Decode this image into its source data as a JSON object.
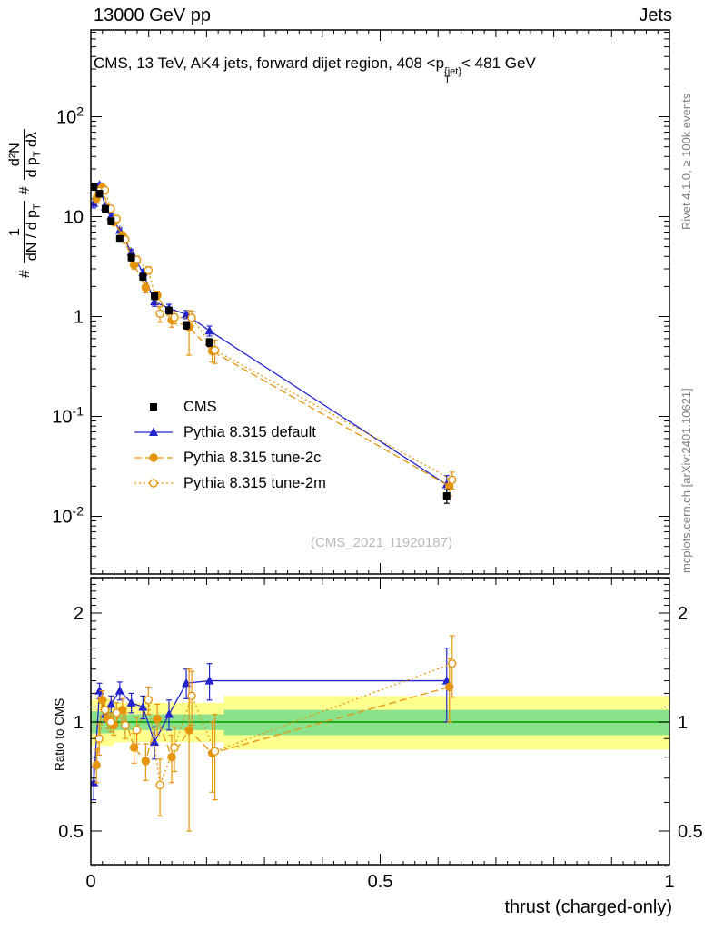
{
  "header": {
    "left": "13000 GeV pp",
    "right": "Jets"
  },
  "title": {
    "a": "CMS, 13 TeV, AK4 jets, forward dijet region, 408 <p",
    "sup": "{jet}",
    "sub": "T",
    "b": "< 481 GeV"
  },
  "watermark": "(CMS_2021_I1920187)",
  "side_notes": {
    "top": "Rivet 4.1.0, ≥ 100k events",
    "bottom": "mcplots.cern.ch [arXiv:2401.10621]"
  },
  "ylabel_parts": {
    "hash1": "#",
    "frac1_num": "1",
    "frac1_den_a": "dN / d p",
    "frac1_den_sub": "T",
    "hash2": "#",
    "frac2_num": "d²N",
    "frac2_den_a": "d p",
    "frac2_den_sub": "T",
    "frac2_den_b": " dλ"
  },
  "chart_data": {
    "type": "line",
    "xlabel": "thrust (charged-only)",
    "xlim": [
      0,
      1
    ],
    "xticks": [
      {
        "v": 0,
        "label": "0"
      },
      {
        "v": 0.5,
        "label": "0.5"
      },
      {
        "v": 1,
        "label": "1"
      }
    ],
    "bin_centers": [
      0.005,
      0.015,
      0.025,
      0.035,
      0.05,
      0.07,
      0.09,
      0.11,
      0.135,
      0.165,
      0.205,
      0.615
    ],
    "main_panel": {
      "ylog": true,
      "ylim": [
        0.0028,
        710
      ],
      "yticks": [
        {
          "v": 100,
          "base": "10",
          "exp": "2"
        },
        {
          "v": 10,
          "base": "10",
          "exp": ""
        },
        {
          "v": 1,
          "base": "1",
          "exp": ""
        },
        {
          "v": 0.1,
          "base": "10",
          "exp": "-1"
        },
        {
          "v": 0.01,
          "base": "10",
          "exp": "-2"
        }
      ],
      "cms": {
        "label": "CMS",
        "color": "#000000",
        "marker": "square",
        "y": [
          20,
          17,
          12,
          9,
          6.0,
          3.9,
          2.5,
          1.6,
          1.15,
          0.82,
          0.55,
          0.016
        ],
        "yerr": [
          1.6,
          1.3,
          0.9,
          0.7,
          0.45,
          0.3,
          0.19,
          0.12,
          0.09,
          0.07,
          0.05,
          0.0025
        ]
      },
      "series": [
        {
          "label": "Pythia 8.315 default",
          "color": "#2424cc",
          "line": "solid",
          "marker": "triangle",
          "open": false,
          "y": [
            13.6,
            20.7,
            12.6,
            10.1,
            7.3,
            4.4,
            2.75,
            1.41,
            1.21,
            1.05,
            0.72,
            0.0208
          ],
          "ratio": [
            0.68,
            1.22,
            1.05,
            1.12,
            1.22,
            1.13,
            1.1,
            0.88,
            1.05,
            1.28,
            1.3,
            1.3
          ],
          "ratio_err": [
            0.07,
            0.06,
            0.05,
            0.06,
            0.07,
            0.07,
            0.08,
            0.09,
            0.1,
            0.12,
            0.15,
            0.3
          ]
        },
        {
          "label": "Pythia 8.315 tune-2c",
          "color": "#e6940a",
          "line": "dashed",
          "marker": "circle",
          "open": false,
          "y": [
            15.2,
            19.6,
            12.2,
            8.8,
            6.5,
            3.3,
            1.95,
            1.63,
            0.92,
            0.78,
            0.45,
            0.02
          ],
          "ratio": [
            0.76,
            1.15,
            1.02,
            0.98,
            1.08,
            0.85,
            0.78,
            1.02,
            0.8,
            0.95,
            0.82,
            1.25
          ],
          "ratio_err": [
            0.08,
            0.07,
            0.06,
            0.06,
            0.08,
            0.08,
            0.09,
            0.1,
            0.12,
            0.45,
            0.18,
            0.25
          ]
        },
        {
          "label": "Pythia 8.315 tune-2m",
          "color": "#e6940a",
          "line": "dotted",
          "marker": "circle",
          "open": true,
          "y": [
            18.0,
            18.4,
            12.0,
            9.5,
            5.9,
            3.7,
            2.9,
            1.07,
            0.98,
            0.97,
            0.46,
            0.0232
          ],
          "ratio": [
            0.9,
            1.08,
            1.0,
            1.06,
            0.98,
            0.95,
            1.15,
            0.67,
            0.85,
            1.18,
            0.83,
            1.45
          ],
          "ratio_err": [
            0.09,
            0.07,
            0.06,
            0.07,
            0.08,
            0.08,
            0.1,
            0.12,
            0.12,
            0.2,
            0.22,
            0.28
          ]
        }
      ]
    },
    "ratio_panel": {
      "ylabel": "Ratio to CMS",
      "ylog": true,
      "ylim": [
        0.4,
        2.5
      ],
      "yticks": [
        {
          "v": 2,
          "label": "2"
        },
        {
          "v": 1,
          "label": "1"
        },
        {
          "v": 0.5,
          "label": "0.5"
        }
      ],
      "ref_value": 1,
      "ref_color": "#009900",
      "band_yellow_color": "#ffff8e",
      "band_green_color": "#8be28b",
      "band_segments": [
        {
          "x0": 0,
          "x1": 0.04,
          "yellow_lo": 0.86,
          "yellow_hi": 1.16,
          "green_lo": 0.93,
          "green_hi": 1.07
        },
        {
          "x0": 0.04,
          "x1": 0.23,
          "yellow_lo": 0.88,
          "yellow_hi": 1.13,
          "green_lo": 0.95,
          "green_hi": 1.05
        },
        {
          "x0": 0.23,
          "x1": 1.0,
          "yellow_lo": 0.84,
          "yellow_hi": 1.18,
          "green_lo": 0.92,
          "green_hi": 1.08
        }
      ]
    }
  }
}
